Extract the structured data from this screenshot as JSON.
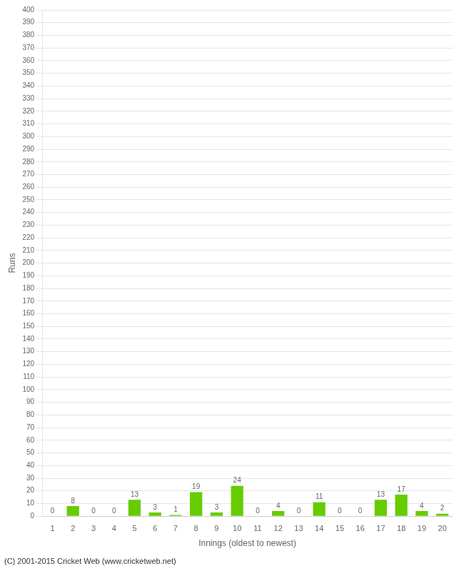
{
  "chart_data": {
    "type": "bar",
    "x_label": "Innings (oldest to newest)",
    "y_label": "Runs",
    "categories": [
      "1",
      "2",
      "3",
      "4",
      "5",
      "6",
      "7",
      "8",
      "9",
      "10",
      "11",
      "12",
      "13",
      "14",
      "15",
      "16",
      "17",
      "18",
      "19",
      "20"
    ],
    "values": [
      0,
      8,
      0,
      0,
      13,
      3,
      1,
      19,
      3,
      24,
      0,
      4,
      0,
      11,
      0,
      0,
      13,
      17,
      4,
      2
    ],
    "color": "#66cc00",
    "ylim": [
      0,
      400
    ],
    "yticks": [
      0,
      10,
      20,
      30,
      40,
      50,
      60,
      70,
      80,
      90,
      100,
      110,
      120,
      130,
      140,
      150,
      160,
      170,
      180,
      190,
      200,
      210,
      220,
      230,
      240,
      250,
      260,
      270,
      280,
      290,
      300,
      310,
      320,
      330,
      340,
      350,
      360,
      370,
      380,
      390,
      400
    ],
    "grid": true,
    "data_labels": true,
    "annotations": [
      "(C) 2001-2015 Cricket Web (www.cricketweb.net)"
    ]
  }
}
